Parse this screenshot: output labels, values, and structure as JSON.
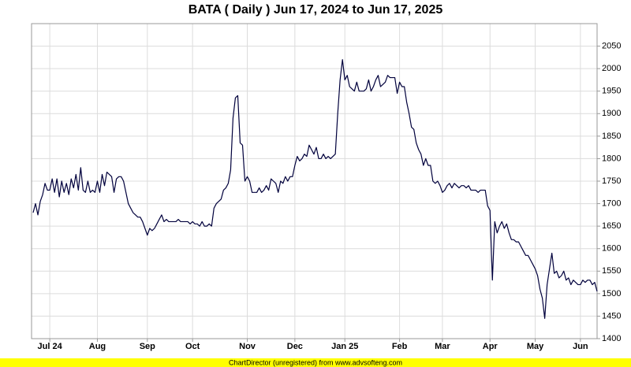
{
  "chart_data": {
    "type": "line",
    "title": "BATA ( Daily ) Jun 17, 2024 to Jun 17, 2025",
    "categories": [
      null,
      null,
      null,
      null,
      null,
      null,
      null,
      "Jul 24",
      null,
      null,
      null,
      null,
      null,
      null,
      null,
      null,
      null,
      null,
      null,
      null,
      null,
      null,
      null,
      null,
      null,
      null,
      null,
      "Aug",
      null,
      null,
      null,
      null,
      null,
      null,
      null,
      null,
      null,
      null,
      null,
      null,
      null,
      null,
      null,
      null,
      null,
      null,
      null,
      null,
      "Sep",
      null,
      null,
      null,
      null,
      null,
      null,
      null,
      null,
      null,
      null,
      null,
      null,
      null,
      null,
      null,
      null,
      null,
      null,
      "Oct",
      null,
      null,
      null,
      null,
      null,
      null,
      null,
      null,
      null,
      null,
      null,
      null,
      null,
      null,
      null,
      null,
      null,
      null,
      null,
      null,
      null,
      null,
      "Nov",
      null,
      null,
      null,
      null,
      null,
      null,
      null,
      null,
      null,
      null,
      null,
      null,
      null,
      null,
      null,
      null,
      null,
      null,
      null,
      "Dec",
      null,
      null,
      null,
      null,
      null,
      null,
      null,
      null,
      null,
      null,
      null,
      null,
      null,
      null,
      null,
      null,
      null,
      null,
      null,
      null,
      "Jan 25",
      null,
      null,
      null,
      null,
      null,
      null,
      null,
      null,
      null,
      null,
      null,
      null,
      null,
      null,
      null,
      null,
      null,
      null,
      null,
      null,
      null,
      null,
      "Feb",
      null,
      null,
      null,
      null,
      null,
      null,
      null,
      null,
      null,
      null,
      null,
      null,
      null,
      null,
      null,
      null,
      null,
      "Mar",
      null,
      null,
      null,
      null,
      null,
      null,
      null,
      null,
      null,
      null,
      null,
      null,
      null,
      null,
      null,
      null,
      null,
      null,
      null,
      "Apr",
      null,
      null,
      null,
      null,
      null,
      null,
      null,
      null,
      null,
      null,
      null,
      null,
      null,
      null,
      null,
      null,
      null,
      null,
      "May",
      null,
      null,
      null,
      null,
      null,
      null,
      null,
      null,
      null,
      null,
      null,
      null,
      null,
      null,
      null,
      null,
      null,
      null,
      "Jun",
      null,
      null,
      null,
      null,
      null,
      null,
      null
    ],
    "values": [
      1680,
      1700,
      1675,
      1705,
      1720,
      1745,
      1730,
      1730,
      1755,
      1725,
      1755,
      1715,
      1750,
      1725,
      1745,
      1720,
      1755,
      1735,
      1765,
      1730,
      1780,
      1730,
      1725,
      1750,
      1725,
      1730,
      1725,
      1750,
      1725,
      1765,
      1740,
      1770,
      1765,
      1760,
      1725,
      1755,
      1760,
      1760,
      1750,
      1725,
      1700,
      1690,
      1680,
      1675,
      1670,
      1670,
      1660,
      1645,
      1630,
      1645,
      1640,
      1645,
      1655,
      1665,
      1675,
      1660,
      1665,
      1660,
      1660,
      1660,
      1660,
      1665,
      1660,
      1660,
      1660,
      1660,
      1655,
      1660,
      1655,
      1655,
      1650,
      1660,
      1650,
      1650,
      1655,
      1650,
      1690,
      1700,
      1705,
      1710,
      1730,
      1735,
      1745,
      1775,
      1890,
      1935,
      1940,
      1835,
      1830,
      1750,
      1760,
      1750,
      1725,
      1725,
      1725,
      1735,
      1725,
      1730,
      1740,
      1730,
      1755,
      1750,
      1745,
      1725,
      1750,
      1745,
      1760,
      1750,
      1760,
      1760,
      1785,
      1805,
      1795,
      1800,
      1810,
      1805,
      1830,
      1820,
      1810,
      1825,
      1800,
      1800,
      1810,
      1800,
      1805,
      1800,
      1805,
      1810,
      1900,
      1975,
      2020,
      1975,
      1985,
      1960,
      1955,
      1950,
      1970,
      1950,
      1950,
      1950,
      1955,
      1975,
      1950,
      1960,
      1975,
      1985,
      1960,
      1965,
      1970,
      1985,
      1980,
      1980,
      1980,
      1945,
      1970,
      1960,
      1960,
      1925,
      1900,
      1870,
      1865,
      1835,
      1820,
      1810,
      1785,
      1800,
      1785,
      1785,
      1750,
      1745,
      1750,
      1740,
      1725,
      1730,
      1740,
      1745,
      1735,
      1745,
      1740,
      1735,
      1740,
      1740,
      1735,
      1740,
      1730,
      1730,
      1730,
      1725,
      1730,
      1730,
      1730,
      1695,
      1685,
      1530,
      1660,
      1635,
      1650,
      1660,
      1645,
      1655,
      1635,
      1620,
      1620,
      1615,
      1615,
      1605,
      1595,
      1585,
      1585,
      1575,
      1565,
      1555,
      1540,
      1510,
      1490,
      1445,
      1520,
      1555,
      1590,
      1545,
      1550,
      1535,
      1540,
      1550,
      1530,
      1535,
      1520,
      1530,
      1525,
      1520,
      1520,
      1530,
      1525,
      1530,
      1530,
      1520,
      1525,
      1505
    ],
    "color": "#00003c",
    "ylim": [
      1400,
      2100
    ],
    "yticks": [
      1400,
      1450,
      1500,
      1550,
      1600,
      1650,
      1700,
      1750,
      1800,
      1850,
      1900,
      1950,
      2000,
      2050
    ],
    "grid": true
  },
  "footer": "ChartDirector (unregistered) from www.advsofteng.com"
}
